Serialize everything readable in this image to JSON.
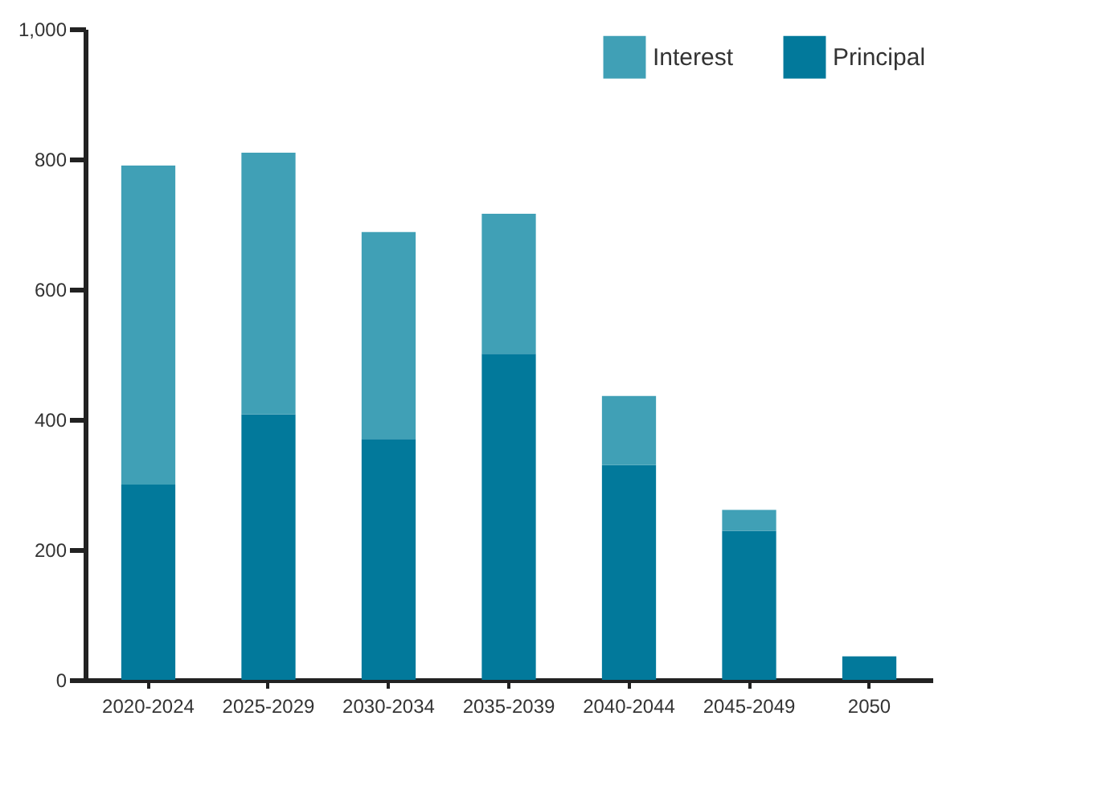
{
  "chart_data": {
    "type": "bar",
    "stacked": true,
    "categories": [
      "2020-2024",
      "2025-2029",
      "2030-2034",
      "2035-2039",
      "2040-2044",
      "2045-2049",
      "2050"
    ],
    "series": [
      {
        "name": "Principal",
        "color": "#02799b",
        "values": [
          300,
          408,
          370,
          501,
          330,
          229,
          36
        ]
      },
      {
        "name": "Interest",
        "color": "#40a0b6",
        "values": [
          490,
          402,
          318,
          215,
          106,
          32,
          null
        ]
      }
    ],
    "ylim": [
      0,
      1000
    ],
    "yticks": [
      0,
      200,
      400,
      600,
      800,
      {
        "value": 1000,
        "label": "1,000"
      }
    ],
    "grid": false,
    "legend": "top right"
  }
}
